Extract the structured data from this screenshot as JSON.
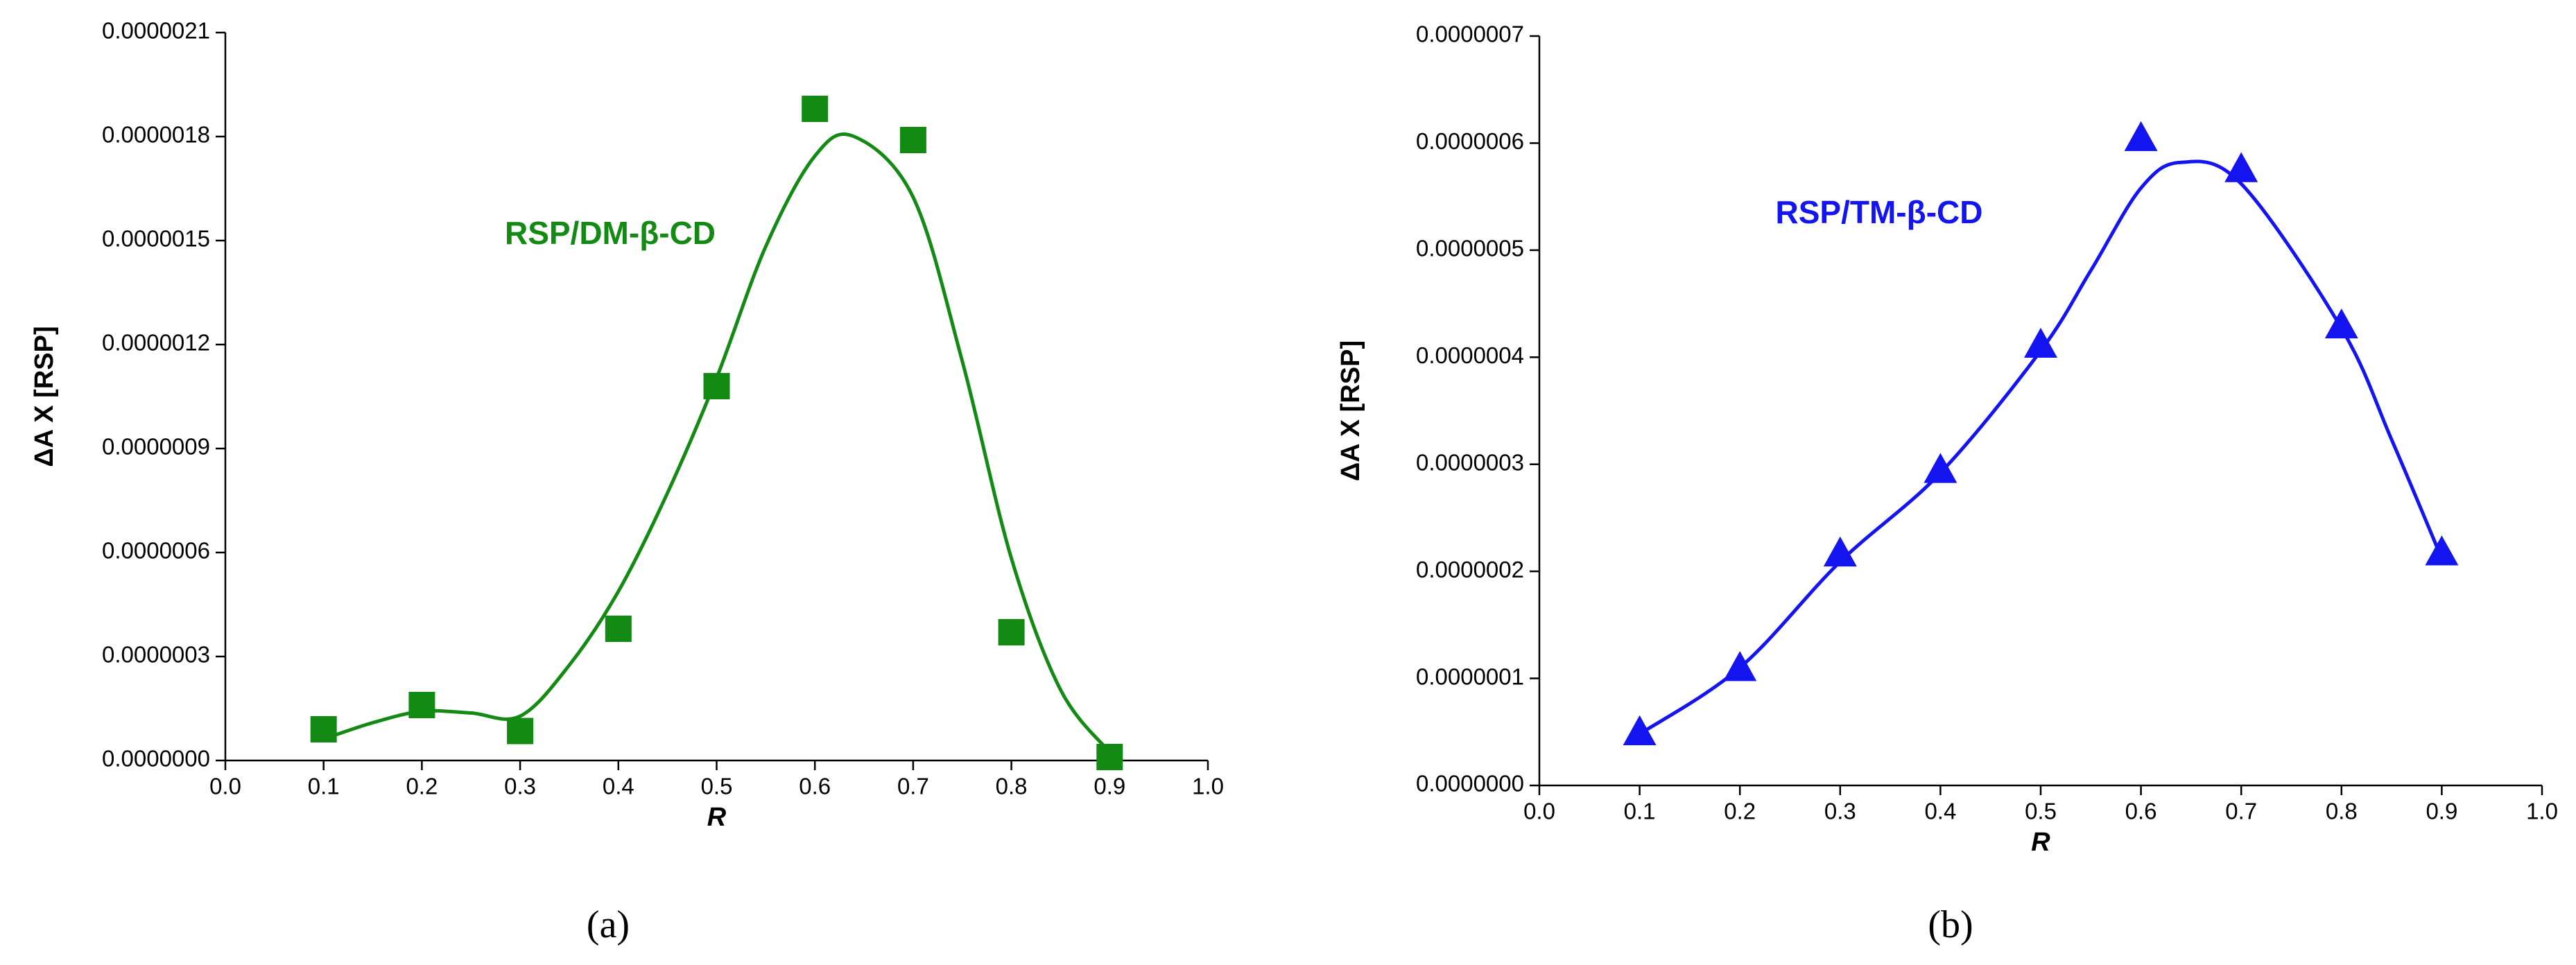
{
  "chart_data": [
    {
      "type": "scatter",
      "caption": "(a)",
      "annotation": "RSP/DM-β-CD",
      "x_label": "R",
      "y_label": "ΔA X [RSP]",
      "color": "#138a13",
      "marker": "square",
      "points": {
        "x": [
          0.1,
          0.2,
          0.3,
          0.4,
          0.5,
          0.6,
          0.7,
          0.8,
          0.9
        ],
        "values": [
          9e-08,
          1.6e-07,
          8.5e-08,
          3.8e-07,
          1.08e-06,
          1.88e-06,
          1.79e-06,
          3.7e-07,
          1e-08
        ]
      },
      "fit": {
        "x": [
          0.1,
          0.15,
          0.2,
          0.25,
          0.3,
          0.35,
          0.4,
          0.45,
          0.5,
          0.55,
          0.6,
          0.64,
          0.7,
          0.75,
          0.8,
          0.85,
          0.9
        ],
        "values": [
          6.2e-08,
          1.09e-07,
          1.42e-07,
          1.37e-07,
          1.28e-07,
          2.75e-07,
          4.88e-07,
          7.72e-07,
          1.104e-06,
          1.483e-06,
          1.744e-06,
          1.8e-06,
          1.625e-06,
          1.152e-06,
          5.83e-07,
          2.04e-07,
          2.4e-08
        ]
      },
      "xlim": [
        0,
        1
      ],
      "xticks": [
        {
          "value": 0,
          "label": "0.0"
        },
        0.1,
        0.2,
        0.3,
        0.4,
        0.5,
        0.6,
        0.7,
        0.8,
        0.9,
        {
          "value": 1,
          "label": "1.0"
        }
      ],
      "ylim": [
        0,
        2.1e-06
      ],
      "yticks": [
        {
          "value": 0,
          "label": "0.0000000"
        },
        {
          "value": 3e-07,
          "label": "0.0000003"
        },
        {
          "value": 6e-07,
          "label": "0.0000006"
        },
        {
          "value": 9e-07,
          "label": "0.0000009"
        },
        {
          "value": 1.2e-06,
          "label": "0.0000012"
        },
        {
          "value": 1.5e-06,
          "label": "0.0000015"
        },
        {
          "value": 1.8e-06,
          "label": "0.0000018"
        },
        {
          "value": 2.1e-06,
          "label": "0.0000021"
        }
      ]
    },
    {
      "type": "scatter",
      "caption": "(b)",
      "annotation": "RSP/TM-β-CD",
      "x_label": "R",
      "y_label": "ΔA X [RSP]",
      "color": "#1414f0",
      "marker": "triangle",
      "points": {
        "x": [
          0.1,
          0.2,
          0.3,
          0.4,
          0.5,
          0.6,
          0.7,
          0.8,
          0.9
        ],
        "values": [
          5e-08,
          1.1e-07,
          2.17e-07,
          2.95e-07,
          4.12e-07,
          6.05e-07,
          5.76e-07,
          4.3e-07,
          2.18e-07
        ]
      },
      "fit": {
        "x": [
          0.1,
          0.2,
          0.3,
          0.4,
          0.5,
          0.55,
          0.6,
          0.64,
          0.7,
          0.8,
          0.85,
          0.9
        ],
        "values": [
          4.8e-08,
          1.1e-07,
          2.09e-07,
          2.92e-07,
          4.06e-07,
          4.81e-07,
          5.58e-07,
          5.82e-07,
          5.62e-07,
          4.27e-07,
          3.23e-07,
          2.12e-07
        ]
      },
      "xlim": [
        0,
        1
      ],
      "xticks": [
        {
          "value": 0,
          "label": "0.0"
        },
        0.1,
        0.2,
        0.3,
        0.4,
        0.5,
        0.6,
        0.7,
        0.8,
        0.9,
        {
          "value": 1,
          "label": "1.0"
        }
      ],
      "ylim": [
        0,
        7e-07
      ],
      "yticks": [
        {
          "value": 0,
          "label": "0.0000000"
        },
        {
          "value": 1e-07,
          "label": "0.0000001"
        },
        {
          "value": 2e-07,
          "label": "0.0000002"
        },
        {
          "value": 3e-07,
          "label": "0.0000003"
        },
        {
          "value": 4e-07,
          "label": "0.0000004"
        },
        {
          "value": 5e-07,
          "label": "0.0000005"
        },
        {
          "value": 6e-07,
          "label": "0.0000006"
        },
        {
          "value": 7e-07,
          "label": "0.0000007"
        }
      ]
    }
  ]
}
